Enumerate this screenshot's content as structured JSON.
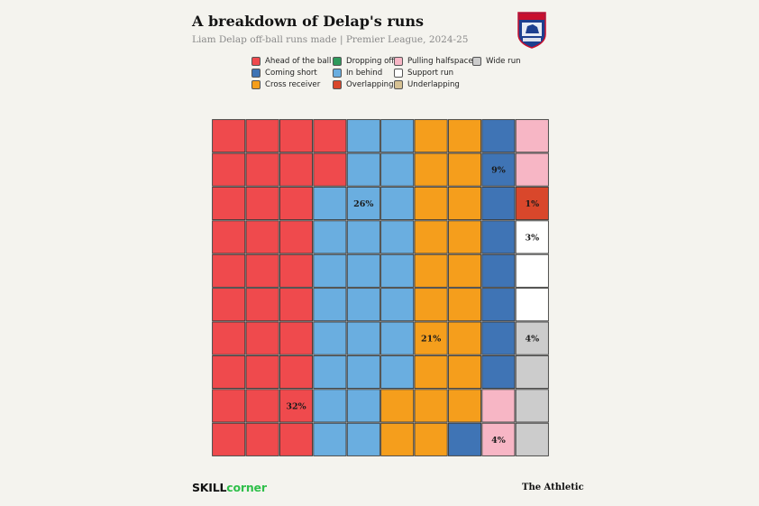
{
  "header": {
    "title": "A breakdown of Delap's runs",
    "subtitle": "Liam Delap off-ball runs made | Premier League, 2024-25"
  },
  "legend": [
    {
      "label": "Ahead of the ball",
      "color": "#ef4a4d"
    },
    {
      "label": "Coming short",
      "color": "#3f74b5"
    },
    {
      "label": "Cross receiver",
      "color": "#f59e1c"
    },
    {
      "label": "Dropping off",
      "color": "#2f9a5c"
    },
    {
      "label": "In behind",
      "color": "#6aaee0"
    },
    {
      "label": "Overlapping",
      "color": "#d9472b"
    },
    {
      "label": "Pulling halfspace",
      "color": "#f7b6c5"
    },
    {
      "label": "Support run",
      "color": "#ffffff"
    },
    {
      "label": "Underlapping",
      "color": "#d6c193"
    },
    {
      "label": "Wide run",
      "color": "#cccccc"
    }
  ],
  "chart_data": {
    "type": "waffle",
    "rows": 10,
    "cols": 10,
    "fill_order": "column-major, top-to-bottom, left-to-right",
    "unit": "%",
    "categories": [
      {
        "name": "Ahead of the ball",
        "value": 32,
        "label": "32%",
        "color": "#ef4a4d"
      },
      {
        "name": "In behind",
        "value": 26,
        "label": "26%",
        "color": "#6aaee0"
      },
      {
        "name": "Cross receiver",
        "value": 21,
        "label": "21%",
        "color": "#f59e1c"
      },
      {
        "name": "Coming short",
        "value": 9,
        "label": "9%",
        "color": "#3f74b5"
      },
      {
        "name": "Pulling halfspace",
        "value": 4,
        "label": "4%",
        "color": "#f7b6c5"
      },
      {
        "name": "Overlapping",
        "value": 1,
        "label": "1%",
        "color": "#d9472b"
      },
      {
        "name": "Support run",
        "value": 3,
        "label": "3%",
        "color": "#ffffff"
      },
      {
        "name": "Wide run",
        "value": 4,
        "label": "4%",
        "color": "#cccccc"
      }
    ]
  },
  "footer": {
    "skill": "SKILL",
    "corner": "corner",
    "publisher": "The Athletic"
  }
}
